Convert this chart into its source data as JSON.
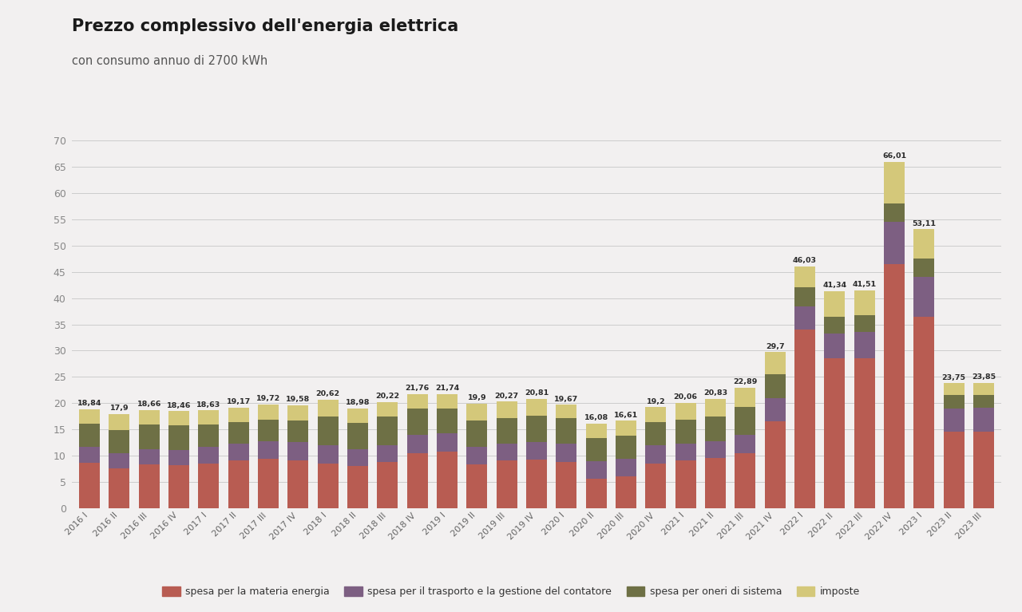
{
  "title": "Prezzo complessivo dell'energia elettrica",
  "subtitle": "con consumo annuo di 2700 kWh",
  "background_color": "#f2f0f0",
  "categories": [
    "2016 I",
    "2016 II",
    "2016 III",
    "2016 IV",
    "2017 I",
    "2017 II",
    "2017 III",
    "2017 IV",
    "2018 I",
    "2018 II",
    "2018 III",
    "2018 IV",
    "2019 I",
    "2019 II",
    "2019 III",
    "2019 IV",
    "2020 I",
    "2020 II",
    "2020 III",
    "2020 IV",
    "2021 I",
    "2021 II",
    "2021 III",
    "2021 IV",
    "2022 I",
    "2022 II",
    "2022 III",
    "2022 IV",
    "2023 I",
    "2023 II",
    "2023 III"
  ],
  "totals": [
    18.84,
    17.9,
    18.66,
    18.46,
    18.63,
    19.17,
    19.72,
    19.58,
    20.62,
    18.98,
    20.22,
    21.76,
    21.74,
    19.9,
    20.27,
    20.81,
    19.67,
    16.08,
    16.61,
    19.2,
    20.06,
    20.83,
    22.89,
    29.7,
    46.03,
    41.34,
    41.51,
    66.01,
    53.11,
    23.75,
    23.85
  ],
  "spesa_materia": [
    8.6,
    7.5,
    8.3,
    8.1,
    8.4,
    9.0,
    9.3,
    9.1,
    8.5,
    8.0,
    8.8,
    10.5,
    10.8,
    8.3,
    9.0,
    9.2,
    8.8,
    5.6,
    6.0,
    8.5,
    9.0,
    9.5,
    10.5,
    16.5,
    34.0,
    28.5,
    28.5,
    46.5,
    36.5,
    14.5,
    14.5
  ],
  "spesa_trasporto": [
    3.0,
    2.9,
    2.9,
    3.0,
    3.2,
    3.3,
    3.4,
    3.4,
    3.4,
    3.2,
    3.2,
    3.4,
    3.4,
    3.3,
    3.3,
    3.4,
    3.4,
    3.3,
    3.3,
    3.4,
    3.3,
    3.2,
    3.5,
    4.5,
    4.5,
    4.8,
    5.0,
    8.0,
    7.5,
    4.5,
    4.6
  ],
  "spesa_oneri": [
    4.5,
    4.5,
    4.7,
    4.6,
    4.3,
    4.1,
    4.2,
    4.2,
    5.5,
    5.0,
    5.5,
    5.0,
    4.8,
    5.0,
    4.8,
    5.0,
    5.0,
    4.5,
    4.5,
    4.5,
    4.5,
    4.8,
    5.3,
    4.5,
    3.5,
    3.2,
    3.2,
    3.5,
    3.5,
    2.5,
    2.5
  ],
  "imposte": [
    2.74,
    3.0,
    2.76,
    2.76,
    2.73,
    2.77,
    2.82,
    2.88,
    3.22,
    2.78,
    2.72,
    2.86,
    2.74,
    3.3,
    3.17,
    3.21,
    2.47,
    2.68,
    2.81,
    2.8,
    3.26,
    3.33,
    3.59,
    4.2,
    4.03,
    4.84,
    4.81,
    8.01,
    5.61,
    2.25,
    2.25
  ],
  "color_materia": "#b85c52",
  "color_trasporto": "#7d5f82",
  "color_oneri": "#6e7045",
  "color_imposte": "#d4c87a",
  "legend_labels": [
    "spesa per la materia energia",
    "spesa per il trasporto e la gestione del contatore",
    "spesa per oneri di sistema",
    "imposte"
  ],
  "ylim": [
    0,
    70
  ],
  "yticks": [
    0,
    5,
    10,
    15,
    20,
    25,
    30,
    35,
    40,
    45,
    50,
    55,
    60,
    65,
    70
  ]
}
